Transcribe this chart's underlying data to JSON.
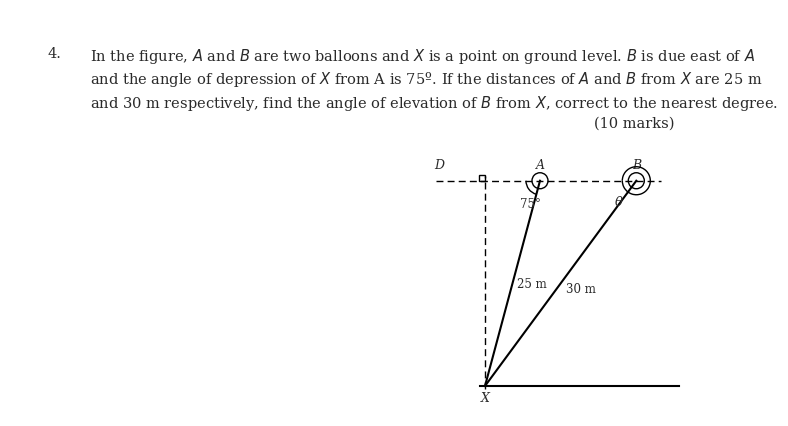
{
  "title_number": "4.",
  "problem_line1": "In the figure, $A$ and $B$ are two balloons and $X$ is a point on ground level. $B$ is due east of $A$",
  "problem_line2": "and the angle of depression of $X$ from A is 75º. If the distances of $A$ and $B$ from $X$ are 25 m",
  "problem_line3": "and 30 m respectively, find the angle of elevation of $B$ from $X$, correct to the nearest degree.",
  "marks_text": "(10 marks)",
  "bg_color": "#ffffff",
  "text_color": "#2a2a2a",
  "font_size_body": 10.5,
  "angle_75_label": "75°",
  "angle_theta_label": "θ",
  "dist_XA_label": "25 m",
  "dist_XB_label": "30 m",
  "label_D": "D",
  "label_A": "A",
  "label_B": "B",
  "label_X": "X"
}
